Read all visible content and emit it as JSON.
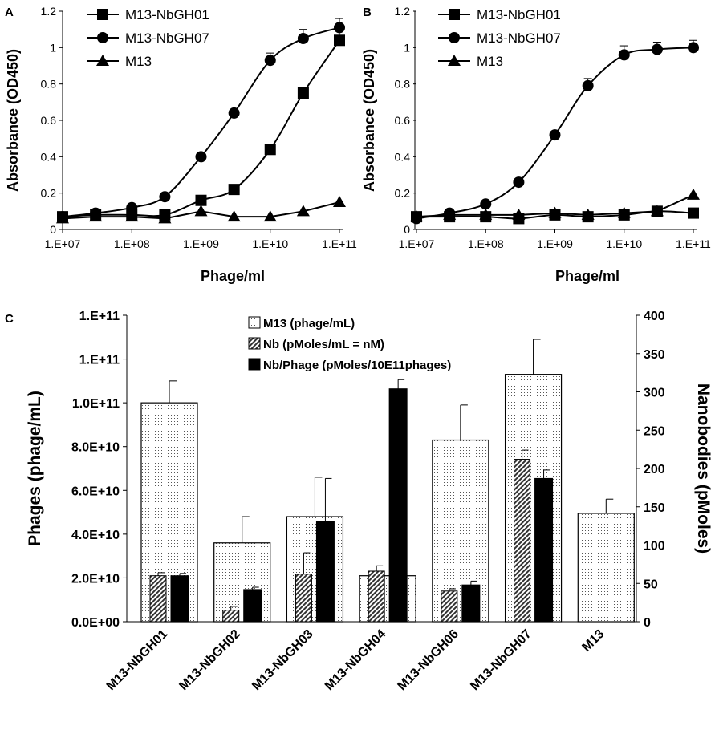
{
  "chart_data": [
    {
      "panel": "A",
      "type": "line",
      "xscale": "log",
      "x": [
        10000000.0,
        30000000.0,
        100000000.0,
        300000000.0,
        1000000000.0,
        3000000000.0,
        10000000000.0,
        30000000000.0,
        100000000000.0
      ],
      "xticks": [
        "1.E+07",
        "1.E+08",
        "1.E+09",
        "1.E+10",
        "1.E+11"
      ],
      "xticks_values": [
        10000000.0,
        100000000.0,
        1000000000.0,
        10000000000.0,
        100000000000.0
      ],
      "yticks": [
        "0",
        "0.2",
        "0.4",
        "0.6",
        "0.8",
        "1",
        "1.2"
      ],
      "yticks_values": [
        0,
        0.2,
        0.4,
        0.6,
        0.8,
        1,
        1.2
      ],
      "ylim": [
        0,
        1.2
      ],
      "xlabel": "Phage/ml",
      "ylabel": "Absorbance (OD450)",
      "series": [
        {
          "name": "M13-NbGH01",
          "marker": "square",
          "values": [
            0.07,
            0.08,
            0.08,
            0.08,
            0.16,
            0.22,
            0.44,
            0.75,
            1.04
          ],
          "errors": [
            0,
            0,
            0,
            0,
            0,
            0,
            0,
            0.03,
            0.05
          ]
        },
        {
          "name": "M13-NbGH07",
          "marker": "circle",
          "values": [
            0.07,
            0.09,
            0.12,
            0.18,
            0.4,
            0.64,
            0.93,
            1.05,
            1.11
          ],
          "errors": [
            0,
            0,
            0,
            0,
            0,
            0,
            0.04,
            0.05,
            0.05
          ]
        },
        {
          "name": "M13",
          "marker": "triangle",
          "values": [
            0.06,
            0.07,
            0.07,
            0.06,
            0.1,
            0.07,
            0.07,
            0.1,
            0.15
          ],
          "errors": [
            0,
            0,
            0,
            0,
            0,
            0,
            0,
            0,
            0
          ]
        }
      ]
    },
    {
      "panel": "B",
      "type": "line",
      "xscale": "log",
      "x": [
        10000000.0,
        30000000.0,
        100000000.0,
        300000000.0,
        1000000000.0,
        3000000000.0,
        10000000000.0,
        30000000000.0,
        100000000000.0
      ],
      "xticks": [
        "1.E+07",
        "1.E+08",
        "1.E+09",
        "1.E+10",
        "1.E+11"
      ],
      "xticks_values": [
        10000000.0,
        100000000.0,
        1000000000.0,
        10000000000.0,
        100000000000.0
      ],
      "yticks": [
        "0",
        "0.2",
        "0.4",
        "0.6",
        "0.8",
        "1",
        "1.2"
      ],
      "yticks_values": [
        0,
        0.2,
        0.4,
        0.6,
        0.8,
        1,
        1.2
      ],
      "ylim": [
        0,
        1.2
      ],
      "xlabel": "Phage/ml",
      "ylabel": "Absorbance (OD450)",
      "series": [
        {
          "name": "M13-NbGH01",
          "marker": "square",
          "values": [
            0.07,
            0.07,
            0.07,
            0.06,
            0.08,
            0.07,
            0.08,
            0.1,
            0.09
          ],
          "errors": [
            0,
            0,
            0,
            0,
            0,
            0,
            0,
            0,
            0
          ]
        },
        {
          "name": "M13-NbGH07",
          "marker": "circle",
          "values": [
            0.06,
            0.09,
            0.14,
            0.26,
            0.52,
            0.79,
            0.96,
            0.99,
            1.0
          ],
          "errors": [
            0,
            0,
            0,
            0,
            0,
            0.04,
            0.05,
            0.04,
            0.04
          ]
        },
        {
          "name": "M13",
          "marker": "triangle",
          "values": [
            0.07,
            0.08,
            0.08,
            0.08,
            0.09,
            0.08,
            0.09,
            0.1,
            0.19
          ],
          "errors": [
            0,
            0,
            0,
            0,
            0,
            0,
            0,
            0,
            0
          ]
        }
      ]
    },
    {
      "panel": "C",
      "type": "bar",
      "categories": [
        "M13-NbGH01",
        "M13-NbGH02",
        "M13-NbGH03",
        "M13-NbGH04",
        "M13-NbGH06",
        "M13-NbGH07",
        "M13"
      ],
      "ylim": [
        0,
        140000000000.0
      ],
      "yticks_values": [
        0,
        20000000000.0,
        40000000000.0,
        60000000000.0,
        80000000000.0,
        100000000000.0,
        120000000000.0,
        140000000000.0
      ],
      "yticks": [
        "0.0E+00",
        "2.0E+10",
        "4.0E+10",
        "6.0E+10",
        "8.0E+10",
        "1.0E+11",
        "1.E+11",
        "1.E+11"
      ],
      "y2lim": [
        0,
        400
      ],
      "y2ticks_values": [
        0,
        50,
        100,
        150,
        200,
        250,
        300,
        350,
        400
      ],
      "y2ticks": [
        "0",
        "50",
        "100",
        "150",
        "200",
        "250",
        "300",
        "350",
        "400"
      ],
      "ylabel": "Phages (phage/mL)",
      "y2label": "Nanobodies (pMoles)",
      "series": [
        {
          "name": "M13 (phage/mL)",
          "axis": "left",
          "pattern": "dots",
          "values": [
            100000000000.0,
            36000000000.0,
            48000000000.0,
            21000000000.0,
            83000000000.0,
            113000000000.0,
            49500000000.0
          ],
          "errors": [
            10000000000.0,
            12000000000.0,
            18000000000.0,
            0,
            16000000000.0,
            16000000000.0,
            6500000000.0
          ]
        },
        {
          "name": "Nb (pMoles/mL = nM)",
          "axis": "right",
          "pattern": "hatch",
          "values": [
            60,
            15,
            62,
            66,
            40,
            212,
            null
          ],
          "errors": [
            4,
            5,
            28,
            7,
            3,
            12,
            null
          ]
        },
        {
          "name": "Nb/Phage (pMoles/10E11phages)",
          "axis": "right",
          "pattern": "solid",
          "values": [
            60,
            42,
            131,
            304,
            48,
            187,
            null
          ],
          "errors": [
            3,
            3,
            56,
            12,
            5,
            11,
            null
          ]
        }
      ]
    }
  ]
}
